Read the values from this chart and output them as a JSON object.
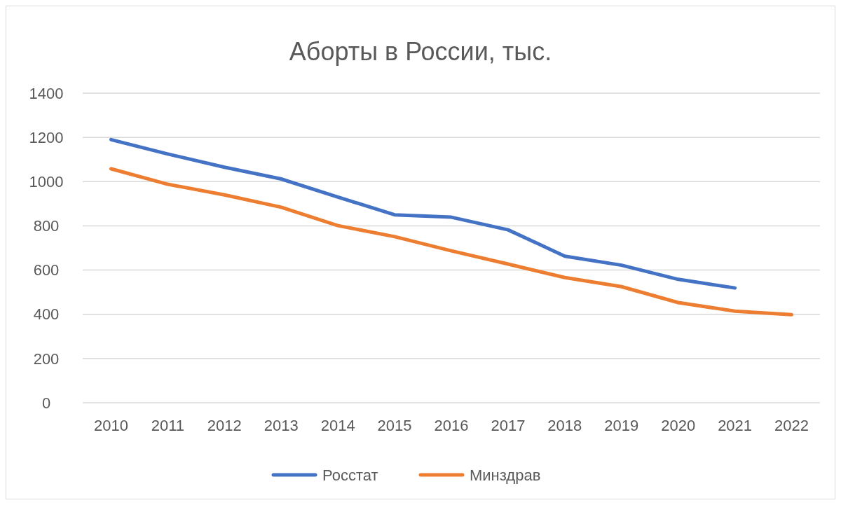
{
  "chart_data": {
    "type": "line",
    "title": "Аборты в России, тыс.",
    "categories": [
      "2010",
      "2011",
      "2012",
      "2013",
      "2014",
      "2015",
      "2016",
      "2017",
      "2018",
      "2019",
      "2020",
      "2021",
      "2022"
    ],
    "series": [
      {
        "name": "Росстат",
        "color": "#4472c4",
        "values": [
          1190,
          1125,
          1065,
          1012,
          930,
          850,
          839,
          782,
          663,
          622,
          558,
          519,
          null
        ]
      },
      {
        "name": "Минздрав",
        "color": "#ed7d31",
        "values": [
          1058,
          988,
          940,
          884,
          801,
          751,
          687,
          627,
          566,
          525,
          453,
          414,
          398
        ]
      }
    ],
    "ylim": [
      0,
      1400
    ],
    "yticks": [
      0,
      200,
      400,
      600,
      800,
      1000,
      1200,
      1400
    ],
    "grid": "y",
    "legend": "bottom",
    "marker": "none",
    "line_style": "solid"
  }
}
